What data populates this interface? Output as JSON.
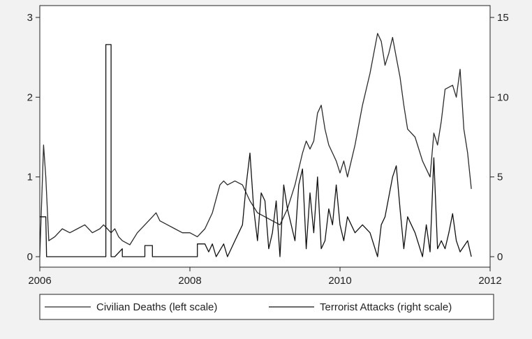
{
  "chart_data": {
    "type": "line",
    "title": "",
    "xlabel": "",
    "x_ticks": [
      "2006",
      "2008",
      "2010",
      "2012"
    ],
    "x_tick_values": [
      2006,
      2008,
      2010,
      2012
    ],
    "xlim": [
      2006,
      2012
    ],
    "y_left": {
      "ticks": [
        "0",
        "1",
        "2",
        "3"
      ],
      "tick_values": [
        0,
        1,
        2,
        3
      ],
      "ylim": [
        0,
        3
      ]
    },
    "y_right": {
      "ticks": [
        "0",
        "5",
        "10",
        "15"
      ],
      "tick_values": [
        0,
        5,
        10,
        15
      ],
      "ylim": [
        0,
        15
      ]
    },
    "grid": false,
    "legend_position": "bottom",
    "series": [
      {
        "name": "Civilian Deaths (left scale)",
        "axis": "left",
        "color": "#2b2b2b",
        "x": [
          2006.0,
          2006.05,
          2006.08,
          2006.12,
          2006.2,
          2006.3,
          2006.4,
          2006.5,
          2006.6,
          2006.7,
          2006.8,
          2006.85,
          2006.9,
          2006.95,
          2007.0,
          2007.05,
          2007.1,
          2007.2,
          2007.3,
          2007.4,
          2007.5,
          2007.55,
          2007.6,
          2007.7,
          2007.8,
          2007.9,
          2008.0,
          2008.1,
          2008.2,
          2008.3,
          2008.4,
          2008.45,
          2008.5,
          2008.6,
          2008.7,
          2008.8,
          2008.9,
          2009.0,
          2009.1,
          2009.2,
          2009.3,
          2009.4,
          2009.5,
          2009.55,
          2009.6,
          2009.65,
          2009.7,
          2009.75,
          2009.8,
          2009.85,
          2009.9,
          2009.95,
          2010.0,
          2010.05,
          2010.1,
          2010.2,
          2010.3,
          2010.4,
          2010.5,
          2010.55,
          2010.6,
          2010.65,
          2010.7,
          2010.75,
          2010.8,
          2010.85,
          2010.9,
          2011.0,
          2011.1,
          2011.2,
          2011.25,
          2011.3,
          2011.35,
          2011.4,
          2011.5,
          2011.55,
          2011.6,
          2011.65,
          2011.7,
          2011.75
        ],
        "values": [
          0.0,
          1.4,
          1.0,
          0.2,
          0.25,
          0.35,
          0.3,
          0.35,
          0.4,
          0.3,
          0.35,
          0.4,
          0.35,
          0.3,
          0.35,
          0.25,
          0.2,
          0.15,
          0.3,
          0.4,
          0.5,
          0.55,
          0.45,
          0.4,
          0.35,
          0.3,
          0.3,
          0.25,
          0.35,
          0.55,
          0.9,
          0.95,
          0.9,
          0.95,
          0.9,
          0.7,
          0.55,
          0.5,
          0.45,
          0.4,
          0.6,
          0.9,
          1.3,
          1.45,
          1.35,
          1.45,
          1.8,
          1.9,
          1.6,
          1.4,
          1.3,
          1.2,
          1.05,
          1.2,
          1.0,
          1.4,
          1.9,
          2.3,
          2.8,
          2.7,
          2.4,
          2.55,
          2.75,
          2.5,
          2.25,
          1.9,
          1.6,
          1.5,
          1.2,
          1.0,
          1.55,
          1.4,
          1.7,
          2.1,
          2.15,
          2.0,
          2.35,
          1.6,
          1.3,
          0.85
        ]
      },
      {
        "name": "Terrorist Attacks (right scale)",
        "axis": "right",
        "color": "#111111",
        "x": [
          2006.0,
          2006.08,
          2006.09,
          2006.88,
          2006.88,
          2006.95,
          2006.95,
          2007.0,
          2007.1,
          2007.1,
          2007.15,
          2007.15,
          2007.4,
          2007.4,
          2007.5,
          2007.5,
          2008.1,
          2008.1,
          2008.2,
          2008.25,
          2008.3,
          2008.35,
          2008.45,
          2008.5,
          2008.6,
          2008.7,
          2008.75,
          2008.8,
          2008.85,
          2008.9,
          2008.95,
          2009.0,
          2009.05,
          2009.1,
          2009.15,
          2009.2,
          2009.25,
          2009.3,
          2009.4,
          2009.45,
          2009.5,
          2009.55,
          2009.6,
          2009.65,
          2009.7,
          2009.75,
          2009.8,
          2009.85,
          2009.9,
          2009.95,
          2010.0,
          2010.05,
          2010.1,
          2010.2,
          2010.3,
          2010.4,
          2010.5,
          2010.55,
          2010.6,
          2010.7,
          2010.75,
          2010.8,
          2010.85,
          2010.9,
          2011.0,
          2011.1,
          2011.15,
          2011.2,
          2011.25,
          2011.3,
          2011.35,
          2011.4,
          2011.45,
          2011.5,
          2011.55,
          2011.6,
          2011.7,
          2011.75
        ],
        "values": [
          2.5,
          2.5,
          0.0,
          0.0,
          13.3,
          13.3,
          0.0,
          0.0,
          0.5,
          0.0,
          0.0,
          0.0,
          0.0,
          0.7,
          0.7,
          0.0,
          0.0,
          0.8,
          0.8,
          0.3,
          0.8,
          0.0,
          0.8,
          0.0,
          1.0,
          2.0,
          4.5,
          6.5,
          3.0,
          1.0,
          4.0,
          3.5,
          0.5,
          1.5,
          3.5,
          0.0,
          4.5,
          3.0,
          1.0,
          4.5,
          5.5,
          0.5,
          4.0,
          1.5,
          5.0,
          0.5,
          1.0,
          3.0,
          2.0,
          4.5,
          2.0,
          1.0,
          2.5,
          1.5,
          2.0,
          1.5,
          0.0,
          2.0,
          2.5,
          5.0,
          5.7,
          3.0,
          0.5,
          2.5,
          1.5,
          0.0,
          2.0,
          0.3,
          6.2,
          0.5,
          1.0,
          0.5,
          1.5,
          2.7,
          1.0,
          0.3,
          1.0,
          0.0
        ]
      }
    ]
  }
}
